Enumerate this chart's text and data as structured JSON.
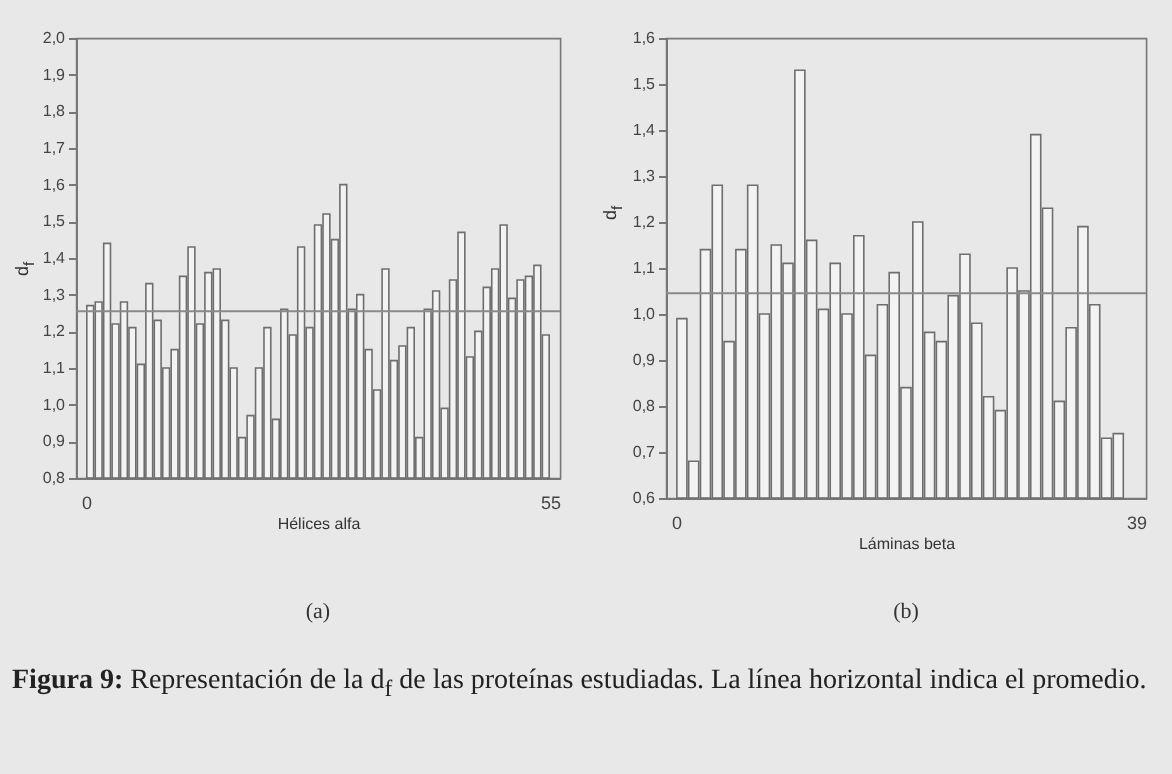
{
  "chart_data": [
    {
      "type": "bar",
      "ylabel": "d$_{f}$",
      "xlabel": "Hélices alfa",
      "annotations": [
        "(a)"
      ],
      "color": "#f3f3f3",
      "x": [
        0.5,
        1.5,
        2.5,
        3.5,
        4.5,
        5.5,
        6.5,
        7.5,
        8.5,
        9.5,
        10.5,
        11.5,
        12.5,
        13.5,
        14.5,
        15.5,
        16.5,
        17.5,
        18.5,
        19.5,
        20.5,
        21.5,
        22.5,
        23.5,
        24.5,
        25.5,
        26.5,
        27.5,
        28.5,
        29.5,
        30.5,
        31.5,
        32.5,
        33.5,
        34.5,
        35.5,
        36.5,
        37.5,
        38.5,
        39.5,
        40.5,
        41.5,
        42.5,
        43.5,
        44.5,
        45.5,
        46.5,
        47.5,
        48.5,
        49.5,
        50.5,
        51.5,
        52.5,
        53.5,
        54.5
      ],
      "values": [
        1.27,
        1.28,
        1.44,
        1.22,
        1.28,
        1.21,
        1.11,
        1.33,
        1.23,
        1.1,
        1.15,
        1.35,
        1.43,
        1.22,
        1.36,
        1.37,
        1.23,
        1.1,
        0.91,
        0.97,
        1.1,
        1.21,
        0.96,
        1.26,
        1.19,
        1.43,
        1.21,
        1.49,
        1.52,
        1.45,
        1.6,
        1.26,
        1.3,
        1.15,
        1.04,
        1.37,
        1.12,
        1.16,
        1.21,
        0.91,
        1.26,
        1.31,
        0.99,
        1.34,
        1.47,
        1.13,
        1.2,
        1.32,
        1.37,
        1.49,
        1.29,
        1.34,
        1.35,
        1.38,
        1.19
      ],
      "xlim": [
        0,
        55
      ],
      "xticks": [
        0,
        55
      ],
      "ylim": [
        0.8,
        2.0
      ],
      "yticks": [
        {
          "value": 0.8,
          "label": "0,8"
        },
        {
          "value": 0.9,
          "label": "0,9"
        },
        {
          "value": 1.0,
          "label": "1,0"
        },
        {
          "value": 1.1,
          "label": "1,1"
        },
        {
          "value": 1.2,
          "label": "1,2"
        },
        {
          "value": 1.3,
          "label": "1,3"
        },
        {
          "value": 1.4,
          "label": "1,4"
        },
        {
          "value": 1.5,
          "label": "1,5"
        },
        {
          "value": 1.6,
          "label": "1,6"
        },
        {
          "value": 1.7,
          "label": "1,7"
        },
        {
          "value": 1.8,
          "label": "1,8"
        },
        {
          "value": 1.9,
          "label": "1,9"
        },
        {
          "value": 2.0,
          "label": "2,0"
        }
      ],
      "ref_lines": [
        {
          "axis": "y",
          "value": 1.255,
          "color": "#8a8a8a"
        }
      ],
      "grid": false
    },
    {
      "type": "bar",
      "ylabel": "d$_{f}$",
      "xlabel": "Láminas beta",
      "annotations": [
        "(b)",
        "Figura 9: Representación de la d$_{f}$ de las proteínas estudiadas. La línea horizontal indica el promedio."
      ],
      "color": "#f3f3f3",
      "x": [
        0.5,
        1.5,
        2.5,
        3.5,
        4.5,
        5.5,
        6.5,
        7.5,
        8.5,
        9.5,
        10.5,
        11.5,
        12.5,
        13.5,
        14.5,
        15.5,
        16.5,
        17.5,
        18.5,
        19.5,
        20.5,
        21.5,
        22.5,
        23.5,
        24.5,
        25.5,
        26.5,
        27.5,
        28.5,
        29.5,
        30.5,
        31.5,
        32.5,
        33.5,
        34.5,
        35.5,
        36.5,
        37.5
      ],
      "values": [
        0.99,
        0.68,
        1.14,
        1.28,
        0.94,
        1.14,
        1.28,
        1.0,
        1.15,
        1.11,
        1.53,
        1.16,
        1.01,
        1.11,
        1.0,
        1.17,
        0.91,
        1.02,
        1.09,
        0.84,
        1.2,
        0.96,
        0.94,
        1.04,
        1.13,
        0.98,
        0.82,
        0.79,
        1.1,
        1.05,
        1.39,
        1.23,
        0.81,
        0.97,
        1.19,
        1.02,
        0.73,
        0.74
      ],
      "xlim": [
        0,
        39
      ],
      "xticks": [
        0,
        39
      ],
      "ylim": [
        0.6,
        1.6
      ],
      "yticks": [
        {
          "value": 0.6,
          "label": "0,6"
        },
        {
          "value": 0.7,
          "label": "0,7"
        },
        {
          "value": 0.8,
          "label": "0,8"
        },
        {
          "value": 0.9,
          "label": "0,9"
        },
        {
          "value": 1.0,
          "label": "1,0"
        },
        {
          "value": 1.1,
          "label": "1,1"
        },
        {
          "value": 1.2,
          "label": "1,2"
        },
        {
          "value": 1.3,
          "label": "1,3"
        },
        {
          "value": 1.4,
          "label": "1,4"
        },
        {
          "value": 1.5,
          "label": "1,5"
        },
        {
          "value": 1.6,
          "label": "1,6"
        }
      ],
      "ref_lines": [
        {
          "axis": "y",
          "value": 1.045,
          "color": "#8a8a8a"
        }
      ],
      "grid": false
    }
  ]
}
